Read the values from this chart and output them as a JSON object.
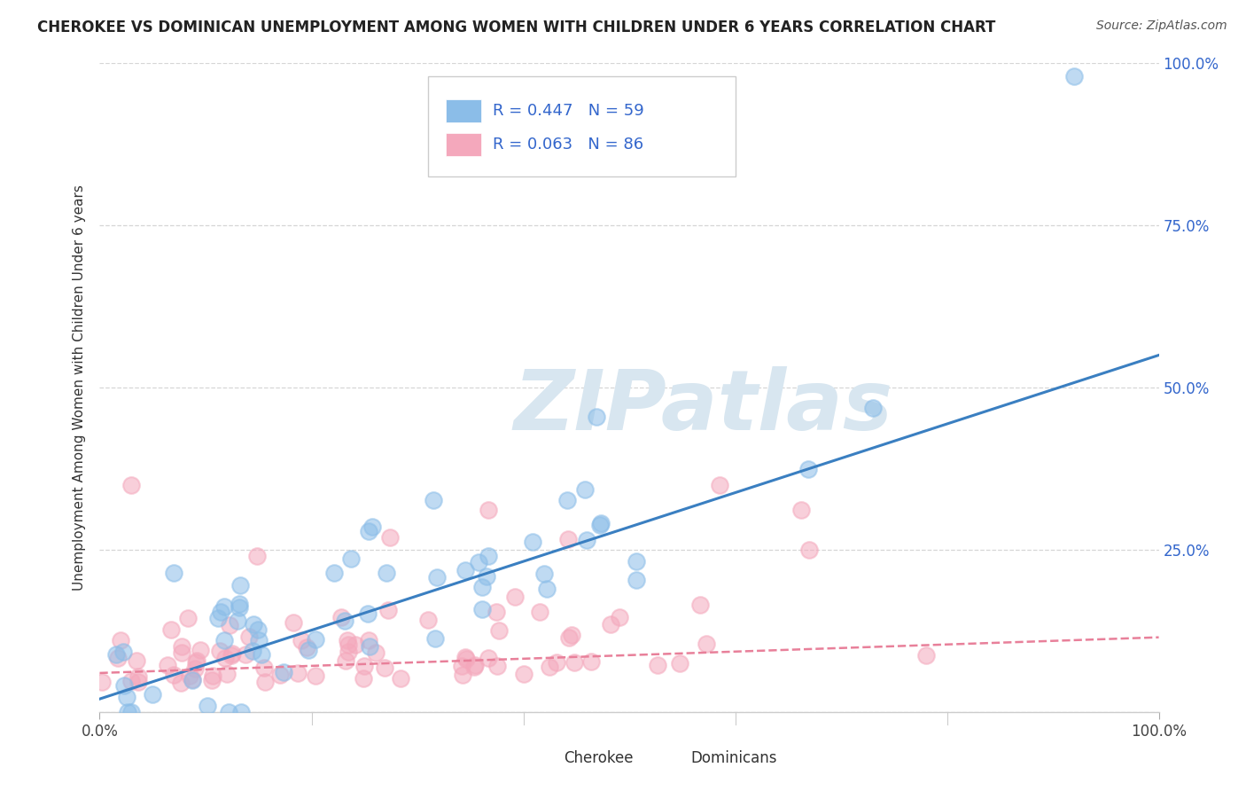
{
  "title": "CHEROKEE VS DOMINICAN UNEMPLOYMENT AMONG WOMEN WITH CHILDREN UNDER 6 YEARS CORRELATION CHART",
  "source": "Source: ZipAtlas.com",
  "ylabel": "Unemployment Among Women with Children Under 6 years",
  "xlim": [
    0,
    1
  ],
  "ylim": [
    0,
    1
  ],
  "cherokee_R": 0.447,
  "cherokee_N": 59,
  "dominican_R": 0.063,
  "dominican_N": 86,
  "cherokee_color": "#8bbde8",
  "dominican_color": "#f4a8bc",
  "cherokee_line_color": "#3a7fc1",
  "dominican_line_color": "#e8809a",
  "watermark_text": "ZIPatlas",
  "watermark_color": "#d8e6f0",
  "background_color": "#ffffff",
  "grid_color": "#cccccc",
  "legend_label_color": "#3366cc",
  "title_fontsize": 12,
  "source_fontsize": 10,
  "ylabel_fontsize": 11,
  "right_ytick_labels": [
    "100.0%",
    "75.0%",
    "50.0%",
    "25.0%"
  ],
  "right_ytick_positions": [
    1.0,
    0.75,
    0.5,
    0.25
  ],
  "cherokee_line_x0": 0.0,
  "cherokee_line_y0": 0.02,
  "cherokee_line_x1": 1.0,
  "cherokee_line_y1": 0.55,
  "dominican_line_x0": 0.0,
  "dominican_line_y0": 0.06,
  "dominican_line_x1": 1.0,
  "dominican_line_y1": 0.115
}
